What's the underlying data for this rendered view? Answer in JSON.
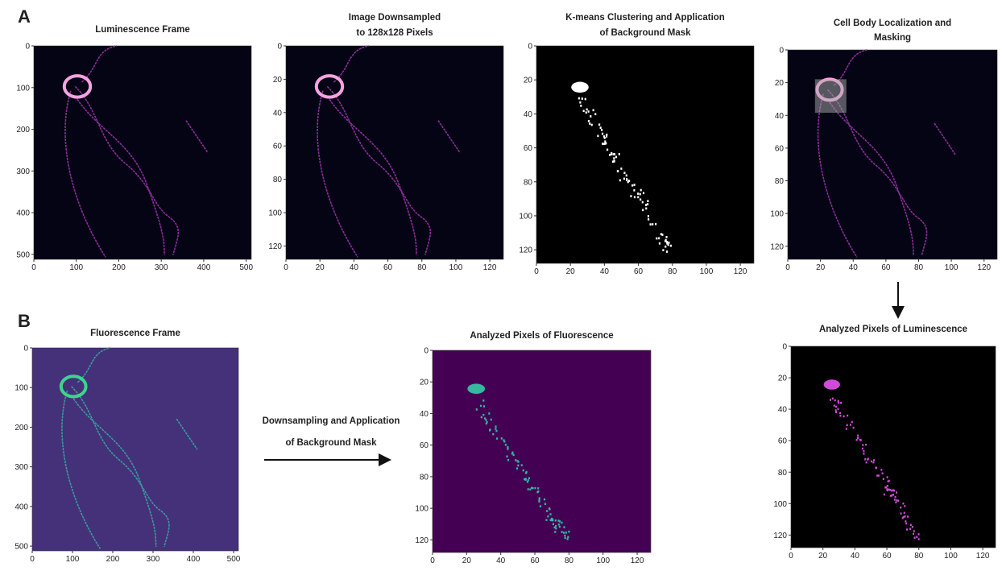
{
  "figure": {
    "label_a": "A",
    "label_b": "B",
    "arrow_text": [
      "Downsampling and Application",
      "of Background Mask"
    ]
  },
  "panels": [
    {
      "title": [
        "Luminescence Frame"
      ],
      "xlim": [
        0,
        512
      ],
      "ylim": [
        0,
        512
      ],
      "xticks": [
        0,
        100,
        200,
        300,
        400,
        500
      ],
      "yticks": [
        0,
        100,
        200,
        300,
        400,
        500
      ]
    },
    {
      "title": [
        "Image Downsampled",
        "to 128x128 Pixels"
      ],
      "xlim": [
        0,
        128
      ],
      "ylim": [
        0,
        128
      ],
      "xticks": [
        0,
        20,
        40,
        60,
        80,
        100,
        120
      ],
      "yticks": [
        0,
        20,
        40,
        60,
        80,
        100,
        120
      ]
    },
    {
      "title": [
        "K-means Clustering and Application",
        "of Background Mask"
      ],
      "xlim": [
        0,
        128
      ],
      "ylim": [
        0,
        128
      ],
      "xticks": [
        0,
        20,
        40,
        60,
        80,
        100,
        120
      ],
      "yticks": [
        0,
        20,
        40,
        60,
        80,
        100,
        120
      ]
    },
    {
      "title": [
        "Cell Body Localization and",
        "Masking"
      ],
      "xlim": [
        0,
        128
      ],
      "ylim": [
        0,
        128
      ],
      "xticks": [
        0,
        20,
        40,
        60,
        80,
        100,
        120
      ],
      "yticks": [
        0,
        20,
        40,
        60,
        80,
        100,
        120
      ]
    },
    {
      "title": [
        "Fluorescence Frame"
      ],
      "xlim": [
        0,
        512
      ],
      "ylim": [
        0,
        512
      ],
      "xticks": [
        0,
        100,
        200,
        300,
        400,
        500
      ],
      "yticks": [
        0,
        100,
        200,
        300,
        400,
        500
      ]
    },
    {
      "title": [
        "Analyzed Pixels of Fluorescence"
      ],
      "xlim": [
        0,
        128
      ],
      "ylim": [
        0,
        128
      ],
      "xticks": [
        0,
        20,
        40,
        60,
        80,
        100,
        120
      ],
      "yticks": [
        0,
        20,
        40,
        60,
        80,
        100,
        120
      ]
    },
    {
      "title": [
        "Analyzed Pixels of Luminescence"
      ],
      "xlim": [
        0,
        128
      ],
      "ylim": [
        0,
        128
      ],
      "xticks": [
        0,
        20,
        40,
        60,
        80,
        100,
        120
      ],
      "yticks": [
        0,
        20,
        40,
        60,
        80,
        100,
        120
      ]
    }
  ]
}
